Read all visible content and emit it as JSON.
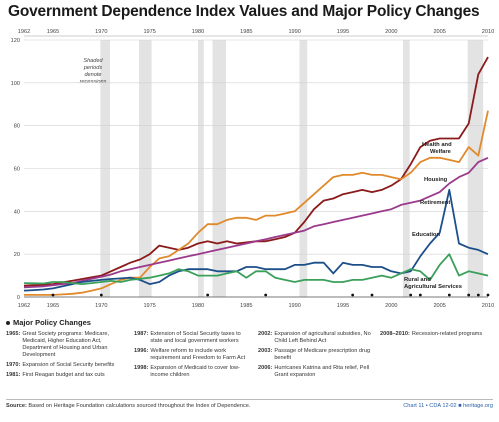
{
  "title": "Government Dependence Index Values and Major Policy Changes",
  "chart_data": {
    "type": "line",
    "x": [
      1962,
      1963,
      1964,
      1965,
      1966,
      1967,
      1968,
      1969,
      1970,
      1971,
      1972,
      1973,
      1974,
      1975,
      1976,
      1977,
      1978,
      1979,
      1980,
      1981,
      1982,
      1983,
      1984,
      1985,
      1986,
      1987,
      1988,
      1989,
      1990,
      1991,
      1992,
      1993,
      1994,
      1995,
      1996,
      1997,
      1998,
      1999,
      2000,
      2001,
      2002,
      2003,
      2004,
      2005,
      2006,
      2007,
      2008,
      2009,
      2010
    ],
    "xlim": [
      1962,
      2010
    ],
    "ylim": [
      0,
      120
    ],
    "x_ticks": [
      1962,
      1965,
      1970,
      1975,
      1980,
      1985,
      1990,
      1995,
      2000,
      2005,
      2010
    ],
    "y_ticks": [
      0,
      20,
      40,
      60,
      80,
      100,
      120
    ],
    "recession_shading": [
      [
        1969.9,
        1970.9
      ],
      [
        1973.9,
        1975.2
      ],
      [
        1980,
        1980.6
      ],
      [
        1981.5,
        1982.9
      ],
      [
        1990.5,
        1991.3
      ],
      [
        2001.2,
        2001.9
      ],
      [
        2007.9,
        2009.5
      ]
    ],
    "recession_note": "Shaded periods denote recessions",
    "policy_markers": [
      1965,
      1970,
      1981,
      1987,
      1996,
      1998,
      2002,
      2003,
      2006,
      2008,
      2009,
      2010
    ],
    "series": [
      {
        "name": "Health and Welfare",
        "color": "#8b1a1a",
        "values": [
          5.3,
          5.5,
          5.7,
          6,
          6.8,
          7.6,
          8.4,
          9.2,
          10,
          12,
          14,
          16,
          17.5,
          20,
          24,
          23,
          22,
          23,
          25,
          26,
          25,
          26,
          25,
          25.5,
          26,
          26,
          27,
          28,
          30,
          35,
          41,
          45,
          46,
          48,
          49,
          50,
          49,
          50,
          52,
          55,
          62,
          70,
          73,
          74,
          74,
          74,
          81,
          104,
          112
        ]
      },
      {
        "name": "Housing",
        "color": "#e08a2c",
        "values": [
          1,
          1,
          1,
          1,
          1.2,
          1.5,
          2,
          3,
          4,
          6,
          8,
          9,
          9,
          14,
          18,
          19,
          22,
          25,
          30,
          34,
          34,
          36,
          37,
          37,
          36,
          38,
          38,
          39,
          40,
          44,
          48,
          52,
          56,
          57,
          57,
          58,
          57,
          57,
          56,
          55,
          58,
          63,
          65,
          65,
          64,
          63,
          70,
          66,
          87
        ]
      },
      {
        "name": "Retirement",
        "color": "#9b3a8c",
        "values": [
          4.5,
          4.7,
          5,
          5.5,
          6,
          6.5,
          7.5,
          8.5,
          9.5,
          10.5,
          12,
          13,
          14,
          15,
          16,
          17,
          18,
          19,
          20,
          21,
          22,
          23,
          24,
          25,
          26,
          27,
          28,
          29,
          30,
          31,
          33,
          34,
          35,
          36,
          37,
          38,
          39,
          40,
          41,
          43,
          44,
          45,
          47,
          49,
          53,
          56,
          58,
          63,
          65
        ]
      },
      {
        "name": "Education",
        "color": "#1c4f8a",
        "values": [
          3,
          3.2,
          3.5,
          4,
          5,
          6,
          7,
          7.5,
          8,
          8.4,
          8.7,
          9,
          8,
          6,
          7,
          10,
          12,
          13,
          13,
          13,
          12,
          12,
          12,
          14,
          14,
          13,
          13,
          13,
          15,
          15,
          16,
          16,
          11,
          16,
          15,
          15,
          14,
          14,
          12,
          11,
          12,
          19,
          25,
          30,
          50,
          25,
          23,
          22,
          20
        ]
      },
      {
        "name": "Rural and Agricultural Services",
        "color": "#3aa05a",
        "values": [
          6.5,
          6.4,
          6.3,
          7,
          7,
          6.5,
          6,
          6.5,
          7,
          7.5,
          7,
          8,
          8.5,
          9,
          10,
          11,
          13,
          12,
          10,
          10,
          10,
          11,
          12,
          9,
          12,
          12,
          9,
          8,
          7,
          8,
          8,
          8,
          7,
          7,
          8,
          8,
          9,
          10,
          9,
          11,
          13,
          12,
          8,
          15,
          20,
          10,
          12,
          11,
          10
        ]
      }
    ]
  },
  "policy_heading": "Major Policy Changes",
  "policies": {
    "col1": [
      {
        "year": "1965:",
        "text": "Great Society programs: Medicare, Medicaid, Higher Education Act, Department of Housing and Urban Development"
      },
      {
        "year": "1970:",
        "text": "Expansion of Social Security benefits"
      },
      {
        "year": "1981:",
        "text": "First Reagan budget and tax cuts"
      }
    ],
    "col2": [
      {
        "year": "1987:",
        "text": "Extension of Social Security taxes to state and local government workers"
      },
      {
        "year": "1996:",
        "text": "Welfare reform to include work requirement and Freedom to Farm Act"
      },
      {
        "year": "1998:",
        "text": "Expansion of Medicaid to cover low-income children"
      }
    ],
    "col3": [
      {
        "year": "2002:",
        "text": "Expansion of agricultural subsidies, No Child Left Behind Act"
      },
      {
        "year": "2003:",
        "text": "Passage of Medicare prescription drug benefit"
      },
      {
        "year": "2006:",
        "text": "Hurricanes Katrina and Rita relief, Pell Grant expansion"
      }
    ],
    "col4": [
      {
        "year": "2008–2010:",
        "text": "Recession-related programs"
      }
    ]
  },
  "footer": {
    "source_label": "Source:",
    "source_text": "Based on Heritage Foundation calculations sourced throughout the Index of Dependence.",
    "credit": "Chart 11 • CDA 12-02  ■ heritage.org"
  }
}
